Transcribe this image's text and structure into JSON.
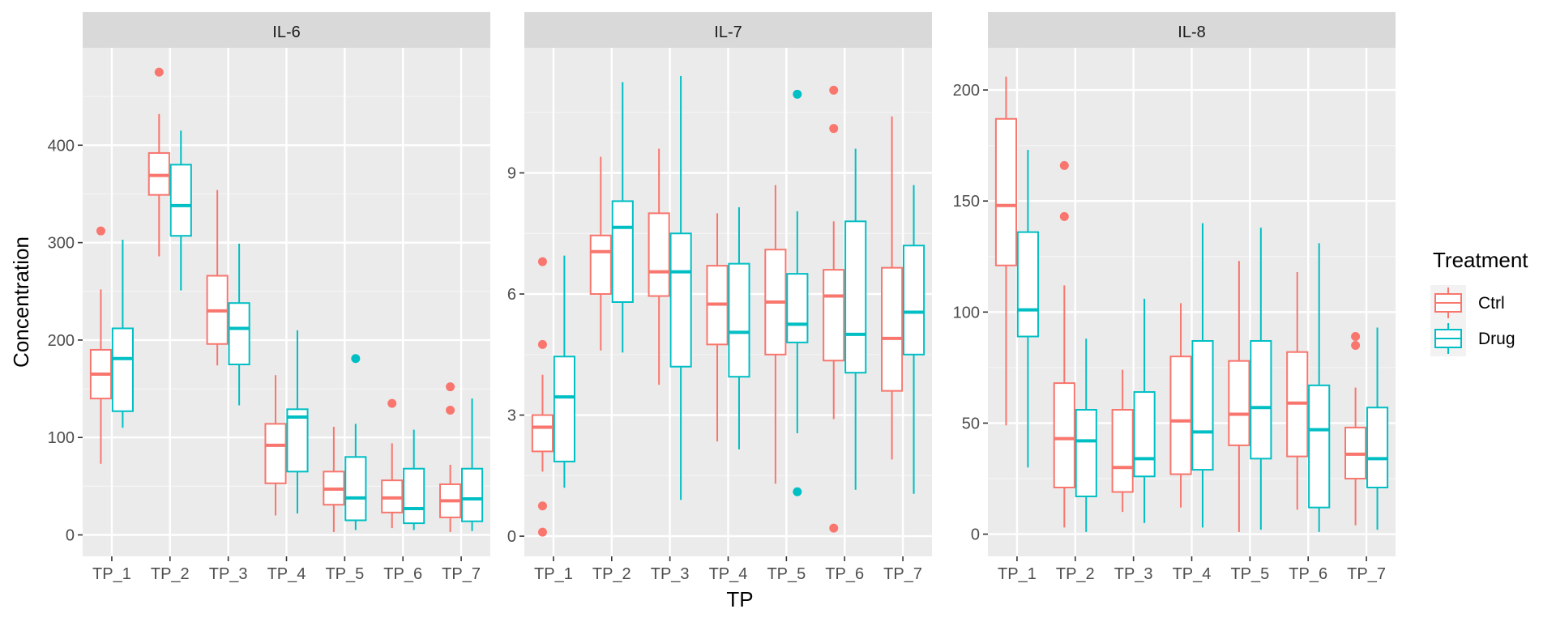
{
  "chart_data": {
    "type": "boxplot",
    "layout": "faceted",
    "xlabel": "TP",
    "ylabel": "Concentration",
    "categories": [
      "TP_1",
      "TP_2",
      "TP_3",
      "TP_4",
      "TP_5",
      "TP_6",
      "TP_7"
    ],
    "legend": {
      "title": "Treatment",
      "position": "right",
      "entries": [
        {
          "name": "Ctrl",
          "color": "#F8766D"
        },
        {
          "name": "Drug",
          "color": "#00BFC4"
        }
      ]
    },
    "grid": true,
    "panel_background": "#EBEBEB",
    "strip_background": "#D9D9D9",
    "facets": [
      {
        "title": "IL-6",
        "ylim": [
          -22,
          500
        ],
        "yticks": [
          0,
          100,
          200,
          300,
          400
        ],
        "ytick_labels": [
          "0",
          "100",
          "200",
          "300",
          "400"
        ],
        "series": [
          {
            "name": "Ctrl",
            "boxes": [
              {
                "min": 73,
                "q1": 140,
                "median": 165,
                "q3": 190,
                "max": 252,
                "outliers": [
                  312
                ]
              },
              {
                "min": 286,
                "q1": 349,
                "median": 369,
                "q3": 392,
                "max": 432,
                "outliers": [
                  475
                ]
              },
              {
                "min": 174,
                "q1": 196,
                "median": 230,
                "q3": 266,
                "max": 354,
                "outliers": []
              },
              {
                "min": 20,
                "q1": 53,
                "median": 92,
                "q3": 114,
                "max": 164,
                "outliers": []
              },
              {
                "min": 3,
                "q1": 31,
                "median": 47,
                "q3": 65,
                "max": 111,
                "outliers": []
              },
              {
                "min": 7,
                "q1": 23,
                "median": 38,
                "q3": 56,
                "max": 94,
                "outliers": [
                  135
                ]
              },
              {
                "min": 3,
                "q1": 18,
                "median": 35,
                "q3": 52,
                "max": 72,
                "outliers": [
                  128,
                  152
                ]
              }
            ]
          },
          {
            "name": "Drug",
            "boxes": [
              {
                "min": 110,
                "q1": 127,
                "median": 181,
                "q3": 212,
                "max": 303,
                "outliers": []
              },
              {
                "min": 251,
                "q1": 307,
                "median": 338,
                "q3": 380,
                "max": 415,
                "outliers": []
              },
              {
                "min": 133,
                "q1": 175,
                "median": 212,
                "q3": 238,
                "max": 299,
                "outliers": []
              },
              {
                "min": 22,
                "q1": 65,
                "median": 121,
                "q3": 129,
                "max": 210,
                "outliers": []
              },
              {
                "min": 5,
                "q1": 15,
                "median": 38,
                "q3": 80,
                "max": 114,
                "outliers": [
                  181
                ]
              },
              {
                "min": 5,
                "q1": 12,
                "median": 27,
                "q3": 68,
                "max": 108,
                "outliers": []
              },
              {
                "min": 4,
                "q1": 14,
                "median": 37,
                "q3": 68,
                "max": 140,
                "outliers": []
              }
            ]
          }
        ]
      },
      {
        "title": "IL-7",
        "ylim": [
          -0.5,
          12.1
        ],
        "yticks": [
          0,
          3,
          6,
          9
        ],
        "ytick_labels": [
          "0",
          "3",
          "6",
          "9"
        ],
        "series": [
          {
            "name": "Ctrl",
            "boxes": [
              {
                "min": 1.6,
                "q1": 2.1,
                "median": 2.7,
                "q3": 3.0,
                "max": 4.0,
                "outliers": [
                  0.1,
                  0.75,
                  4.75,
                  6.8
                ]
              },
              {
                "min": 4.6,
                "q1": 6.0,
                "median": 7.05,
                "q3": 7.45,
                "max": 9.4,
                "outliers": []
              },
              {
                "min": 3.75,
                "q1": 5.95,
                "median": 6.55,
                "q3": 8.0,
                "max": 9.6,
                "outliers": []
              },
              {
                "min": 2.35,
                "q1": 4.75,
                "median": 5.75,
                "q3": 6.7,
                "max": 8.0,
                "outliers": []
              },
              {
                "min": 1.3,
                "q1": 4.5,
                "median": 5.8,
                "q3": 7.1,
                "max": 8.7,
                "outliers": []
              },
              {
                "min": 2.9,
                "q1": 4.35,
                "median": 5.95,
                "q3": 6.6,
                "max": 7.8,
                "outliers": [
                  0.2,
                  10.1,
                  11.05
                ]
              },
              {
                "min": 1.9,
                "q1": 3.6,
                "median": 4.9,
                "q3": 6.65,
                "max": 10.4,
                "outliers": []
              }
            ]
          },
          {
            "name": "Drug",
            "boxes": [
              {
                "min": 1.2,
                "q1": 1.85,
                "median": 3.45,
                "q3": 4.45,
                "max": 6.95,
                "outliers": []
              },
              {
                "min": 4.55,
                "q1": 5.8,
                "median": 7.65,
                "q3": 8.3,
                "max": 11.25,
                "outliers": []
              },
              {
                "min": 0.9,
                "q1": 4.2,
                "median": 6.55,
                "q3": 7.5,
                "max": 11.4,
                "outliers": []
              },
              {
                "min": 2.15,
                "q1": 3.95,
                "median": 5.05,
                "q3": 6.75,
                "max": 8.15,
                "outliers": []
              },
              {
                "min": 2.55,
                "q1": 4.8,
                "median": 5.25,
                "q3": 6.5,
                "max": 8.05,
                "outliers": [
                  1.1,
                  10.95
                ]
              },
              {
                "min": 1.15,
                "q1": 4.05,
                "median": 5.0,
                "q3": 7.8,
                "max": 9.6,
                "outliers": []
              },
              {
                "min": 1.05,
                "q1": 4.5,
                "median": 5.55,
                "q3": 7.2,
                "max": 8.7,
                "outliers": []
              }
            ]
          }
        ]
      },
      {
        "title": "IL-8",
        "ylim": [
          -10,
          219
        ],
        "yticks": [
          0,
          50,
          100,
          150,
          200
        ],
        "ytick_labels": [
          "0",
          "50",
          "100",
          "150",
          "200"
        ],
        "series": [
          {
            "name": "Ctrl",
            "boxes": [
              {
                "min": 49,
                "q1": 121,
                "median": 148,
                "q3": 187,
                "max": 206,
                "outliers": []
              },
              {
                "min": 3,
                "q1": 21,
                "median": 43,
                "q3": 68,
                "max": 112,
                "outliers": [
                  143,
                  166
                ]
              },
              {
                "min": 10,
                "q1": 19,
                "median": 30,
                "q3": 56,
                "max": 74,
                "outliers": []
              },
              {
                "min": 12,
                "q1": 27,
                "median": 51,
                "q3": 80,
                "max": 104,
                "outliers": []
              },
              {
                "min": 1,
                "q1": 40,
                "median": 54,
                "q3": 78,
                "max": 123,
                "outliers": []
              },
              {
                "min": 11,
                "q1": 35,
                "median": 59,
                "q3": 82,
                "max": 118,
                "outliers": []
              },
              {
                "min": 4,
                "q1": 25,
                "median": 36,
                "q3": 48,
                "max": 66,
                "outliers": [
                  85,
                  89
                ]
              }
            ]
          },
          {
            "name": "Drug",
            "boxes": [
              {
                "min": 30,
                "q1": 89,
                "median": 101,
                "q3": 136,
                "max": 173,
                "outliers": []
              },
              {
                "min": 1,
                "q1": 17,
                "median": 42,
                "q3": 56,
                "max": 88,
                "outliers": []
              },
              {
                "min": 5,
                "q1": 26,
                "median": 34,
                "q3": 64,
                "max": 106,
                "outliers": []
              },
              {
                "min": 3,
                "q1": 29,
                "median": 46,
                "q3": 87,
                "max": 140,
                "outliers": []
              },
              {
                "min": 2,
                "q1": 34,
                "median": 57,
                "q3": 87,
                "max": 138,
                "outliers": []
              },
              {
                "min": 1,
                "q1": 12,
                "median": 47,
                "q3": 67,
                "max": 131,
                "outliers": []
              },
              {
                "min": 2,
                "q1": 21,
                "median": 34,
                "q3": 57,
                "max": 93,
                "outliers": []
              }
            ]
          }
        ]
      }
    ]
  }
}
